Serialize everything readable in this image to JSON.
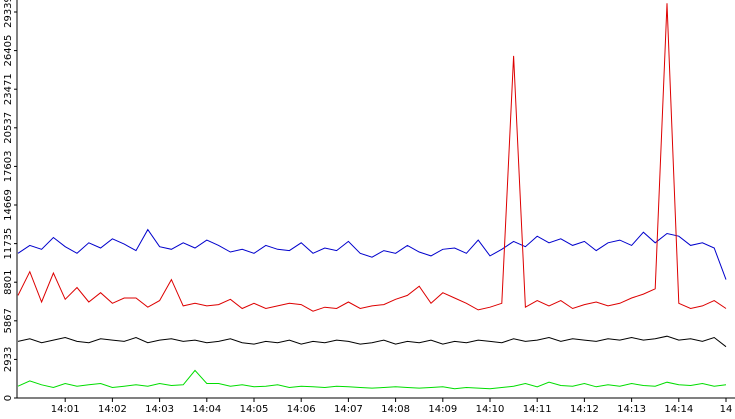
{
  "chart_data": {
    "type": "line",
    "categories": [
      null,
      null,
      null,
      null,
      "14:01",
      null,
      null,
      null,
      "14:02",
      null,
      null,
      null,
      "14:03",
      null,
      null,
      null,
      "14:04",
      null,
      null,
      null,
      "14:05",
      null,
      null,
      null,
      "14:06",
      null,
      null,
      null,
      "14:07",
      null,
      null,
      null,
      "14:08",
      null,
      null,
      null,
      "14:09",
      null,
      null,
      null,
      "14:10",
      null,
      null,
      null,
      "14:11",
      null,
      null,
      null,
      "14:12",
      null,
      null,
      null,
      "14:13",
      null,
      null,
      null,
      "14:14",
      null,
      null,
      null,
      "14"
    ],
    "ylim": [
      0,
      29339
    ],
    "yticks": [
      0,
      2933,
      5867,
      8801,
      11735,
      14669,
      17603,
      20537,
      23471,
      26405,
      29339
    ],
    "series": [
      {
        "color": "#0000cc",
        "values": [
          11000,
          11600,
          11300,
          12200,
          11500,
          11000,
          11800,
          11400,
          12100,
          11700,
          11200,
          12800,
          11500,
          11300,
          11800,
          11400,
          12000,
          11600,
          11100,
          11300,
          11000,
          11600,
          11300,
          11200,
          11800,
          11000,
          11400,
          11200,
          11900,
          11000,
          10700,
          11200,
          11000,
          11600,
          11100,
          10800,
          11300,
          11400,
          11000,
          12000,
          10800,
          11300,
          11900,
          11500,
          12300,
          11800,
          12100,
          11600,
          11900,
          11200,
          11800,
          12000,
          11600,
          12600,
          11800,
          12500,
          12300,
          11600,
          11800,
          11400,
          9000
        ]
      },
      {
        "color": "#dd0000",
        "values": [
          7800,
          9600,
          7300,
          9500,
          7500,
          8400,
          7300,
          8000,
          7200,
          7600,
          7600,
          6900,
          7400,
          9000,
          7000,
          7200,
          7000,
          7100,
          7500,
          6800,
          7200,
          6800,
          7000,
          7200,
          7100,
          6600,
          6900,
          6800,
          7300,
          6800,
          7000,
          7100,
          7500,
          7800,
          8500,
          7200,
          8000,
          7600,
          7200,
          6700,
          6900,
          7200,
          26000,
          6900,
          7400,
          7000,
          7400,
          6800,
          7100,
          7300,
          7000,
          7200,
          7600,
          7900,
          8300,
          30000,
          7200,
          6800,
          7000,
          7400,
          6800
        ]
      },
      {
        "color": "#000000",
        "values": [
          4300,
          4500,
          4200,
          4400,
          4600,
          4300,
          4200,
          4500,
          4400,
          4300,
          4600,
          4200,
          4400,
          4500,
          4300,
          4400,
          4200,
          4300,
          4500,
          4200,
          4100,
          4300,
          4200,
          4400,
          4100,
          4300,
          4200,
          4400,
          4300,
          4100,
          4200,
          4400,
          4100,
          4300,
          4200,
          4400,
          4100,
          4300,
          4200,
          4400,
          4300,
          4200,
          4500,
          4300,
          4400,
          4600,
          4300,
          4500,
          4400,
          4300,
          4500,
          4400,
          4600,
          4400,
          4500,
          4700,
          4400,
          4500,
          4300,
          4600,
          3900
        ]
      },
      {
        "color": "#00dd00",
        "values": [
          900,
          1300,
          1000,
          800,
          1100,
          900,
          1000,
          1100,
          800,
          900,
          1000,
          900,
          1100,
          950,
          1000,
          2100,
          1100,
          1100,
          900,
          1000,
          850,
          900,
          1000,
          800,
          900,
          850,
          800,
          900,
          850,
          800,
          750,
          800,
          850,
          800,
          750,
          800,
          850,
          700,
          800,
          750,
          700,
          800,
          900,
          1100,
          850,
          1200,
          950,
          900,
          1100,
          850,
          1000,
          900,
          1100,
          950,
          900,
          1200,
          1000,
          950,
          1100,
          900,
          1000
        ]
      }
    ]
  }
}
